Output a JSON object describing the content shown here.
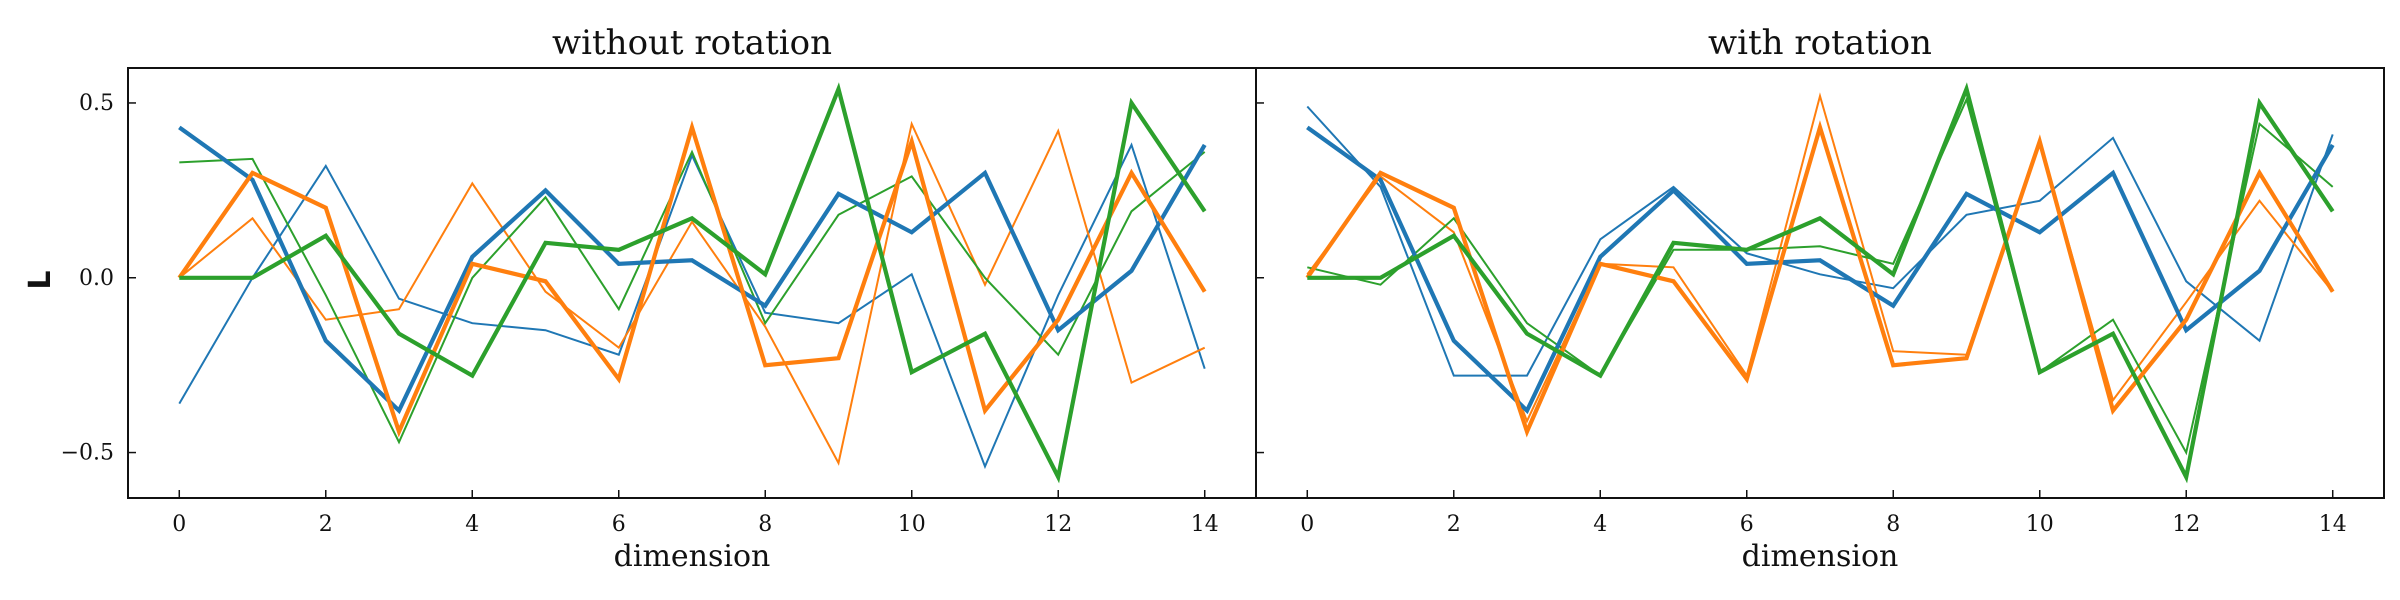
{
  "chart_data": {
    "type": "line",
    "ylabel": "L",
    "x": [
      0,
      1,
      2,
      3,
      4,
      5,
      6,
      7,
      8,
      9,
      10,
      11,
      12,
      13,
      14
    ],
    "xticks": [
      0,
      2,
      4,
      6,
      8,
      10,
      12,
      14
    ],
    "xtick_labels": [
      "0",
      "2",
      "4",
      "6",
      "8",
      "10",
      "12",
      "14"
    ],
    "yticks": [
      0.5,
      0.0,
      -0.5
    ],
    "ytick_labels": [
      "0.5",
      "0.0",
      "−0.5"
    ],
    "xlim": [
      -0.7,
      14.7
    ],
    "ylim": [
      -0.63,
      0.6
    ],
    "grid": false,
    "colors": {
      "blue": "#1f77b4",
      "orange": "#ff7f0e",
      "green": "#2ca02c"
    },
    "panels": [
      {
        "title": "without rotation",
        "xlabel": "dimension",
        "series": [
          {
            "color": "blue",
            "style": "thick",
            "values": [
              0.43,
              0.28,
              -0.18,
              -0.38,
              0.06,
              0.25,
              0.04,
              0.05,
              -0.08,
              0.24,
              0.13,
              0.3,
              -0.15,
              0.02,
              0.38
            ]
          },
          {
            "color": "orange",
            "style": "thick",
            "values": [
              0.0,
              0.3,
              0.2,
              -0.44,
              0.04,
              -0.01,
              -0.29,
              0.43,
              -0.25,
              -0.23,
              0.39,
              -0.38,
              -0.12,
              0.3,
              -0.04
            ]
          },
          {
            "color": "green",
            "style": "thick",
            "values": [
              0.0,
              0.0,
              0.12,
              -0.16,
              -0.28,
              0.1,
              0.08,
              0.17,
              0.01,
              0.54,
              -0.27,
              -0.16,
              -0.57,
              0.5,
              0.19
            ]
          },
          {
            "color": "blue",
            "style": "thin",
            "values": [
              -0.36,
              0.0,
              0.32,
              -0.06,
              -0.13,
              -0.15,
              -0.22,
              0.35,
              -0.1,
              -0.13,
              0.01,
              -0.54,
              -0.05,
              0.38,
              -0.26
            ]
          },
          {
            "color": "orange",
            "style": "thin",
            "values": [
              0.0,
              0.17,
              -0.12,
              -0.09,
              0.27,
              -0.04,
              -0.2,
              0.16,
              -0.14,
              -0.53,
              0.44,
              -0.02,
              0.42,
              -0.3,
              -0.2
            ]
          },
          {
            "color": "green",
            "style": "thin",
            "values": [
              0.33,
              0.34,
              -0.05,
              -0.47,
              0.0,
              0.23,
              -0.09,
              0.36,
              -0.13,
              0.18,
              0.29,
              0.0,
              -0.22,
              0.19,
              0.36
            ]
          }
        ]
      },
      {
        "title": "with rotation",
        "xlabel": "dimension",
        "series": [
          {
            "color": "blue",
            "style": "thick",
            "values": [
              0.43,
              0.28,
              -0.18,
              -0.38,
              0.06,
              0.25,
              0.04,
              0.05,
              -0.08,
              0.24,
              0.13,
              0.3,
              -0.15,
              0.02,
              0.38
            ]
          },
          {
            "color": "orange",
            "style": "thick",
            "values": [
              0.0,
              0.3,
              0.2,
              -0.44,
              0.04,
              -0.01,
              -0.29,
              0.43,
              -0.25,
              -0.23,
              0.39,
              -0.38,
              -0.12,
              0.3,
              -0.04
            ]
          },
          {
            "color": "green",
            "style": "thick",
            "values": [
              0.0,
              0.0,
              0.12,
              -0.16,
              -0.28,
              0.1,
              0.08,
              0.17,
              0.01,
              0.54,
              -0.27,
              -0.16,
              -0.57,
              0.5,
              0.19
            ]
          },
          {
            "color": "blue",
            "style": "thin",
            "values": [
              0.49,
              0.26,
              -0.28,
              -0.28,
              0.11,
              0.26,
              0.07,
              0.01,
              -0.03,
              0.18,
              0.22,
              0.4,
              -0.01,
              -0.18,
              0.41
            ]
          },
          {
            "color": "orange",
            "style": "thin",
            "values": [
              0.01,
              0.29,
              0.13,
              -0.41,
              0.04,
              0.03,
              -0.28,
              0.52,
              -0.21,
              -0.22,
              0.39,
              -0.35,
              -0.07,
              0.22,
              -0.04
            ]
          },
          {
            "color": "green",
            "style": "thin",
            "values": [
              0.03,
              -0.02,
              0.17,
              -0.13,
              -0.28,
              0.08,
              0.08,
              0.09,
              0.04,
              0.51,
              -0.27,
              -0.12,
              -0.5,
              0.44,
              0.26
            ]
          }
        ]
      }
    ]
  }
}
